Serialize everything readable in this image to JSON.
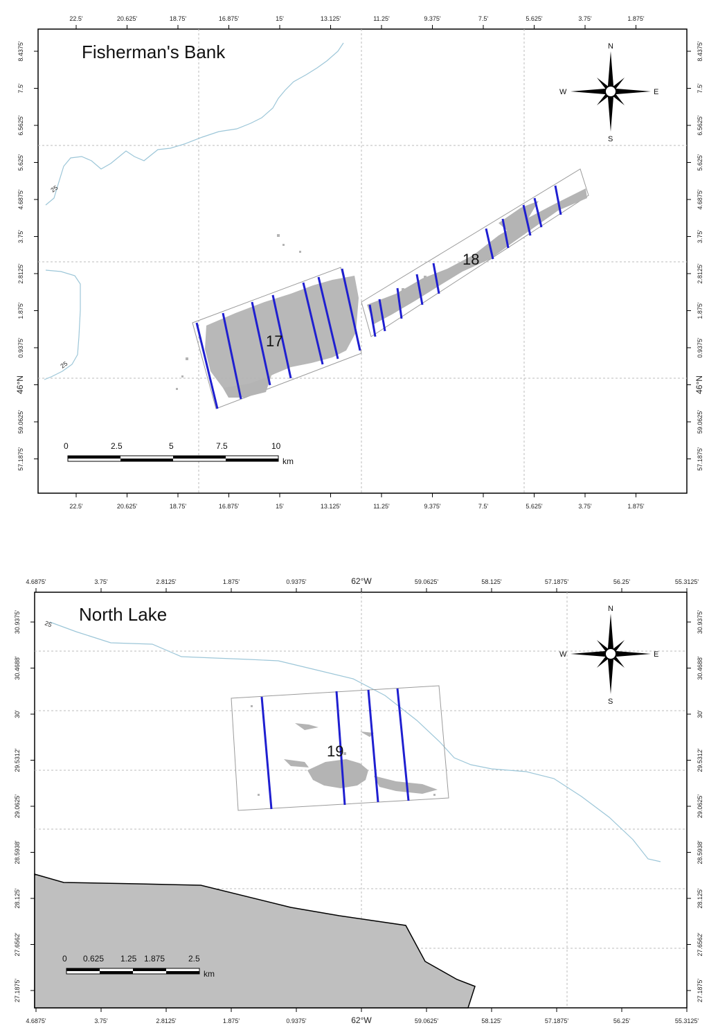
{
  "maps": [
    {
      "title": "Fisherman's Bank",
      "lon_ticks": [
        "22.5'",
        "20.625'",
        "18.75'",
        "16.875'",
        "15'",
        "13.125'",
        "11.25'",
        "9.375'",
        "7.5'",
        "5.625'",
        "3.75'",
        "1.875'"
      ],
      "lat_ticks": [
        "8.4375'",
        "7.5'",
        "6.5625'",
        "5.625'",
        "4.6875'",
        "3.75'",
        "2.8125'",
        "1.875'",
        "0.9375'",
        "46°N",
        "59.0625'",
        "57.1875'"
      ],
      "bed_labels": [
        "17",
        "18"
      ],
      "contour_label": "25",
      "compass": {
        "n": "N",
        "s": "S",
        "e": "E",
        "w": "W"
      },
      "scalebar": {
        "ticks": [
          "0",
          "2.5",
          "5",
          "7.5",
          "10"
        ],
        "unit": "km"
      }
    },
    {
      "title": "North Lake",
      "lon_ticks": [
        "4.6875'",
        "3.75'",
        "2.8125'",
        "1.875'",
        "0.9375'",
        "62°W",
        "59.0625'",
        "58.125'",
        "57.1875'",
        "56.25'",
        "55.3125'"
      ],
      "lat_ticks": [
        "30.9375'",
        "30.4688'",
        "30'",
        "29.5312'",
        "29.0625'",
        "28.5938'",
        "28.125'",
        "27.6562'",
        "27.1875'"
      ],
      "bed_labels": [
        "19"
      ],
      "contour_label": "25",
      "compass": {
        "n": "N",
        "s": "S",
        "e": "E",
        "w": "W"
      },
      "scalebar": {
        "ticks": [
          "0",
          "0.625",
          "1.25",
          "1.875",
          "2.5"
        ],
        "unit": "km"
      }
    }
  ],
  "colors": {
    "frame": "#000000",
    "grid": "#bbbbbb",
    "contour": "#9cc6d8",
    "transect": "#1f1fd0",
    "survey_points": "#b4b4b4",
    "land": "#bfbfbf",
    "bed_outline": "#9a9a9a"
  }
}
